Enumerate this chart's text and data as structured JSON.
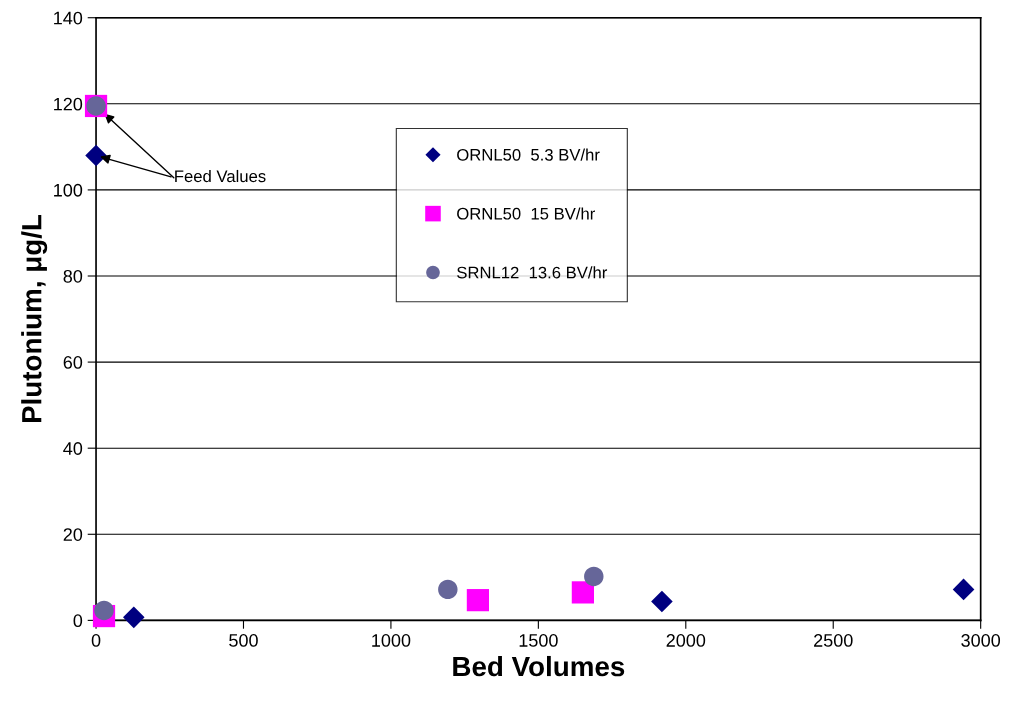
{
  "chart_data": {
    "type": "scatter",
    "xlabel": "Bed Volumes",
    "ylabel": "Plutonium, μg/L",
    "xlim": [
      0,
      3000
    ],
    "xticks": [
      0,
      500,
      1000,
      1500,
      2000,
      2500,
      3000
    ],
    "ylim": [
      0,
      140
    ],
    "yticks": [
      0,
      20,
      40,
      60,
      80,
      100,
      120,
      140
    ],
    "grid": "y",
    "legend": "top",
    "series": [
      {
        "name": "ORNL50  5.3 BV/hr",
        "color": "#000080",
        "marker": "diamond",
        "x": [
          0,
          128,
          1919,
          2942
        ],
        "values": [
          108,
          0.7,
          4.4,
          7.2
        ]
      },
      {
        "name": "ORNL50  15 BV/hr",
        "color": "#ff00ff",
        "marker": "square",
        "x": [
          0,
          27,
          1295,
          1651
        ],
        "values": [
          119.5,
          1.0,
          4.7,
          6.5
        ]
      },
      {
        "name": "SRNL12  13.6 BV/hr",
        "color": "#666699",
        "marker": "circle",
        "x": [
          0,
          27,
          1193,
          1688
        ],
        "values": [
          119.5,
          2.3,
          7.2,
          10.2
        ]
      }
    ],
    "annotations": [
      {
        "text": "Feed Values",
        "x": 0,
        "y": 108
      }
    ]
  }
}
